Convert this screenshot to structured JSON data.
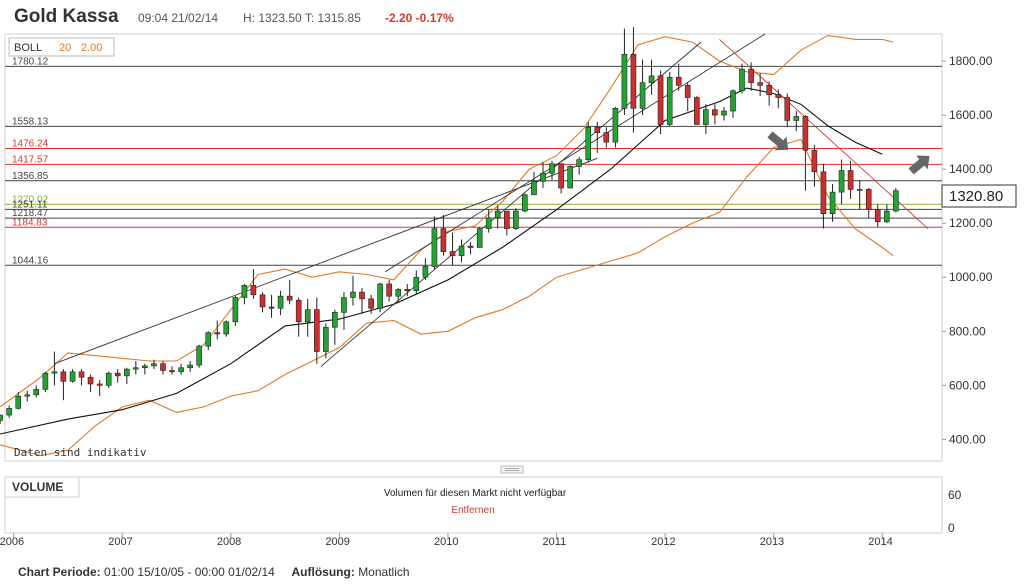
{
  "header": {
    "title": "Gold Kassa",
    "time": "09:04 21/02/14",
    "high_low": "H: 1323.50  T: 1315.85",
    "change": "-2.20  -0.17%"
  },
  "indicator": {
    "name": "BOLL",
    "period": "20",
    "stddev": "2.00"
  },
  "current_price_label": "1320.80",
  "disclaimer": "Daten sind indikativ",
  "volume": {
    "title": "VOLUME",
    "message": "Volumen für diesen Markt nicht verfügbar",
    "remove_label": "Entfernen",
    "tick_labels": [
      "60",
      "0"
    ]
  },
  "footer": {
    "period_label": "Chart Periode:",
    "period_value": "01:00 15/10/05 - 00:00 01/02/14",
    "resolution_label": "Auflösung:",
    "resolution_value": "Monatlich"
  },
  "colors": {
    "up": "#23a334",
    "down": "#cc2f2f",
    "band": "#e07a26",
    "level_red": "#d23a2b",
    "level_green": "#8db02c",
    "level_dark": "#444444",
    "trend_red": "#d23a2b"
  },
  "icons": [
    "arrow-down-right-icon",
    "arrow-up-right-icon",
    "drag-handle-icon"
  ],
  "chart_data": {
    "type": "candlestick",
    "title": "Gold Kassa",
    "resolution": "monthly",
    "ylim": [
      320,
      1900
    ],
    "y_ticks": [
      400,
      600,
      800,
      1000,
      1200,
      1400,
      1600,
      1800
    ],
    "y_tick_labels": [
      "400.00",
      "600.00",
      "800.00",
      "1000.00",
      "1200.00",
      "1400.00",
      "1600.00",
      "1800.00"
    ],
    "x_ticks": [
      {
        "label": "2006",
        "t": 2006.0
      },
      {
        "label": "2007",
        "t": 2007.0
      },
      {
        "label": "2008",
        "t": 2008.0
      },
      {
        "label": "2009",
        "t": 2009.0
      },
      {
        "label": "2010",
        "t": 2010.0
      },
      {
        "label": "2011",
        "t": 2011.0
      },
      {
        "label": "2012",
        "t": 2012.0
      },
      {
        "label": "2013",
        "t": 2013.0
      },
      {
        "label": "2014",
        "t": 2014.0
      }
    ],
    "xlim": [
      2005.92,
      2014.55
    ],
    "levels": [
      {
        "value": 1780.12,
        "label": "1780.12",
        "color": "#444444",
        "text_color": "#444444"
      },
      {
        "value": 1558.13,
        "label": "1558.13",
        "color": "#444444",
        "text_color": "#444444"
      },
      {
        "value": 1476.24,
        "label": "1476.24",
        "color": "#d23a2b",
        "text_color": "#d23a2b"
      },
      {
        "value": 1417.57,
        "label": "1417.57",
        "color": "#d23a2b",
        "text_color": "#d23a2b"
      },
      {
        "value": 1356.85,
        "label": "1356.85",
        "color": "#444444",
        "text_color": "#444444"
      },
      {
        "value": 1270.02,
        "label": "1270.02",
        "color": "#8db02c",
        "text_color": "#8db02c"
      },
      {
        "value": 1251.11,
        "label": "1251.11",
        "color": "#444444",
        "text_color": "#444444"
      },
      {
        "value": 1218.47,
        "label": "1218.47",
        "color": "#444444",
        "text_color": "#444444"
      },
      {
        "value": 1184.83,
        "label": "1184.83",
        "color": "#d23a2b",
        "text_color": "#d23a2b"
      },
      {
        "value": 1044.16,
        "label": "1044.16",
        "color": "#444444",
        "text_color": "#444444"
      }
    ],
    "current_price": 1320.8,
    "candles": [
      {
        "t": 2005.875,
        "o": 470,
        "h": 492,
        "l": 457,
        "c": 490
      },
      {
        "t": 2005.958,
        "o": 490,
        "h": 525,
        "l": 480,
        "c": 515
      },
      {
        "t": 2006.042,
        "o": 515,
        "h": 575,
        "l": 510,
        "c": 560
      },
      {
        "t": 2006.125,
        "o": 560,
        "h": 580,
        "l": 540,
        "c": 565
      },
      {
        "t": 2006.208,
        "o": 565,
        "h": 600,
        "l": 555,
        "c": 585
      },
      {
        "t": 2006.292,
        "o": 585,
        "h": 650,
        "l": 575,
        "c": 645
      },
      {
        "t": 2006.375,
        "o": 645,
        "h": 725,
        "l": 600,
        "c": 650
      },
      {
        "t": 2006.458,
        "o": 650,
        "h": 660,
        "l": 545,
        "c": 615
      },
      {
        "t": 2006.542,
        "o": 615,
        "h": 660,
        "l": 610,
        "c": 650
      },
      {
        "t": 2006.625,
        "o": 650,
        "h": 660,
        "l": 600,
        "c": 630
      },
      {
        "t": 2006.708,
        "o": 630,
        "h": 640,
        "l": 575,
        "c": 605
      },
      {
        "t": 2006.792,
        "o": 605,
        "h": 620,
        "l": 560,
        "c": 600
      },
      {
        "t": 2006.875,
        "o": 600,
        "h": 650,
        "l": 590,
        "c": 645
      },
      {
        "t": 2006.958,
        "o": 645,
        "h": 660,
        "l": 610,
        "c": 635
      },
      {
        "t": 2007.042,
        "o": 635,
        "h": 665,
        "l": 605,
        "c": 660
      },
      {
        "t": 2007.125,
        "o": 660,
        "h": 690,
        "l": 640,
        "c": 665
      },
      {
        "t": 2007.208,
        "o": 665,
        "h": 680,
        "l": 640,
        "c": 672
      },
      {
        "t": 2007.292,
        "o": 672,
        "h": 695,
        "l": 660,
        "c": 680
      },
      {
        "t": 2007.375,
        "o": 680,
        "h": 690,
        "l": 640,
        "c": 655
      },
      {
        "t": 2007.458,
        "o": 655,
        "h": 670,
        "l": 640,
        "c": 650
      },
      {
        "t": 2007.542,
        "o": 650,
        "h": 680,
        "l": 640,
        "c": 665
      },
      {
        "t": 2007.625,
        "o": 665,
        "h": 690,
        "l": 650,
        "c": 675
      },
      {
        "t": 2007.708,
        "o": 675,
        "h": 750,
        "l": 665,
        "c": 745
      },
      {
        "t": 2007.792,
        "o": 745,
        "h": 800,
        "l": 730,
        "c": 795
      },
      {
        "t": 2007.875,
        "o": 795,
        "h": 840,
        "l": 770,
        "c": 790
      },
      {
        "t": 2007.958,
        "o": 790,
        "h": 840,
        "l": 780,
        "c": 835
      },
      {
        "t": 2008.042,
        "o": 835,
        "h": 930,
        "l": 820,
        "c": 925
      },
      {
        "t": 2008.125,
        "o": 925,
        "h": 975,
        "l": 900,
        "c": 970
      },
      {
        "t": 2008.208,
        "o": 970,
        "h": 1030,
        "l": 920,
        "c": 935
      },
      {
        "t": 2008.292,
        "o": 935,
        "h": 945,
        "l": 870,
        "c": 890
      },
      {
        "t": 2008.375,
        "o": 890,
        "h": 935,
        "l": 850,
        "c": 885
      },
      {
        "t": 2008.458,
        "o": 885,
        "h": 950,
        "l": 860,
        "c": 930
      },
      {
        "t": 2008.542,
        "o": 930,
        "h": 990,
        "l": 900,
        "c": 915
      },
      {
        "t": 2008.625,
        "o": 915,
        "h": 925,
        "l": 780,
        "c": 835
      },
      {
        "t": 2008.708,
        "o": 835,
        "h": 920,
        "l": 780,
        "c": 880
      },
      {
        "t": 2008.792,
        "o": 880,
        "h": 925,
        "l": 680,
        "c": 725
      },
      {
        "t": 2008.875,
        "o": 725,
        "h": 830,
        "l": 700,
        "c": 815
      },
      {
        "t": 2008.958,
        "o": 815,
        "h": 880,
        "l": 750,
        "c": 870
      },
      {
        "t": 2009.042,
        "o": 870,
        "h": 945,
        "l": 805,
        "c": 925
      },
      {
        "t": 2009.125,
        "o": 925,
        "h": 1005,
        "l": 895,
        "c": 945
      },
      {
        "t": 2009.208,
        "o": 945,
        "h": 960,
        "l": 865,
        "c": 920
      },
      {
        "t": 2009.292,
        "o": 920,
        "h": 935,
        "l": 865,
        "c": 885
      },
      {
        "t": 2009.375,
        "o": 885,
        "h": 980,
        "l": 870,
        "c": 975
      },
      {
        "t": 2009.458,
        "o": 975,
        "h": 990,
        "l": 910,
        "c": 930
      },
      {
        "t": 2009.542,
        "o": 930,
        "h": 960,
        "l": 905,
        "c": 955
      },
      {
        "t": 2009.625,
        "o": 955,
        "h": 975,
        "l": 930,
        "c": 950
      },
      {
        "t": 2009.708,
        "o": 950,
        "h": 1025,
        "l": 935,
        "c": 1000
      },
      {
        "t": 2009.792,
        "o": 1000,
        "h": 1070,
        "l": 990,
        "c": 1040
      },
      {
        "t": 2009.875,
        "o": 1040,
        "h": 1225,
        "l": 1030,
        "c": 1180
      },
      {
        "t": 2009.958,
        "o": 1180,
        "h": 1230,
        "l": 1080,
        "c": 1095
      },
      {
        "t": 2010.042,
        "o": 1095,
        "h": 1165,
        "l": 1045,
        "c": 1080
      },
      {
        "t": 2010.125,
        "o": 1080,
        "h": 1140,
        "l": 1055,
        "c": 1115
      },
      {
        "t": 2010.208,
        "o": 1115,
        "h": 1130,
        "l": 1085,
        "c": 1110
      },
      {
        "t": 2010.292,
        "o": 1110,
        "h": 1185,
        "l": 1110,
        "c": 1180
      },
      {
        "t": 2010.375,
        "o": 1180,
        "h": 1250,
        "l": 1165,
        "c": 1220
      },
      {
        "t": 2010.458,
        "o": 1220,
        "h": 1265,
        "l": 1180,
        "c": 1245
      },
      {
        "t": 2010.542,
        "o": 1245,
        "h": 1245,
        "l": 1155,
        "c": 1180
      },
      {
        "t": 2010.625,
        "o": 1180,
        "h": 1255,
        "l": 1175,
        "c": 1245
      },
      {
        "t": 2010.708,
        "o": 1245,
        "h": 1310,
        "l": 1240,
        "c": 1305
      },
      {
        "t": 2010.792,
        "o": 1305,
        "h": 1390,
        "l": 1305,
        "c": 1355
      },
      {
        "t": 2010.875,
        "o": 1355,
        "h": 1425,
        "l": 1330,
        "c": 1385
      },
      {
        "t": 2010.958,
        "o": 1385,
        "h": 1430,
        "l": 1360,
        "c": 1420
      },
      {
        "t": 2011.042,
        "o": 1420,
        "h": 1420,
        "l": 1310,
        "c": 1330
      },
      {
        "t": 2011.125,
        "o": 1330,
        "h": 1415,
        "l": 1330,
        "c": 1410
      },
      {
        "t": 2011.208,
        "o": 1410,
        "h": 1445,
        "l": 1380,
        "c": 1435
      },
      {
        "t": 2011.292,
        "o": 1435,
        "h": 1575,
        "l": 1425,
        "c": 1555
      },
      {
        "t": 2011.375,
        "o": 1555,
        "h": 1575,
        "l": 1460,
        "c": 1535
      },
      {
        "t": 2011.458,
        "o": 1535,
        "h": 1555,
        "l": 1480,
        "c": 1500
      },
      {
        "t": 2011.542,
        "o": 1500,
        "h": 1630,
        "l": 1480,
        "c": 1625
      },
      {
        "t": 2011.625,
        "o": 1625,
        "h": 1920,
        "l": 1600,
        "c": 1825
      },
      {
        "t": 2011.708,
        "o": 1825,
        "h": 1925,
        "l": 1535,
        "c": 1625
      },
      {
        "t": 2011.792,
        "o": 1625,
        "h": 1805,
        "l": 1600,
        "c": 1720
      },
      {
        "t": 2011.875,
        "o": 1720,
        "h": 1805,
        "l": 1675,
        "c": 1745
      },
      {
        "t": 2011.958,
        "o": 1745,
        "h": 1765,
        "l": 1530,
        "c": 1565
      },
      {
        "t": 2012.042,
        "o": 1565,
        "h": 1760,
        "l": 1560,
        "c": 1740
      },
      {
        "t": 2012.125,
        "o": 1740,
        "h": 1790,
        "l": 1690,
        "c": 1710
      },
      {
        "t": 2012.208,
        "o": 1710,
        "h": 1720,
        "l": 1615,
        "c": 1665
      },
      {
        "t": 2012.292,
        "o": 1665,
        "h": 1670,
        "l": 1565,
        "c": 1565
      },
      {
        "t": 2012.375,
        "o": 1565,
        "h": 1640,
        "l": 1530,
        "c": 1620
      },
      {
        "t": 2012.458,
        "o": 1620,
        "h": 1640,
        "l": 1565,
        "c": 1600
      },
      {
        "t": 2012.542,
        "o": 1600,
        "h": 1630,
        "l": 1580,
        "c": 1615
      },
      {
        "t": 2012.625,
        "o": 1615,
        "h": 1695,
        "l": 1590,
        "c": 1690
      },
      {
        "t": 2012.708,
        "o": 1690,
        "h": 1790,
        "l": 1680,
        "c": 1770
      },
      {
        "t": 2012.792,
        "o": 1770,
        "h": 1795,
        "l": 1690,
        "c": 1720
      },
      {
        "t": 2012.875,
        "o": 1720,
        "h": 1755,
        "l": 1670,
        "c": 1710
      },
      {
        "t": 2012.958,
        "o": 1710,
        "h": 1725,
        "l": 1635,
        "c": 1675
      },
      {
        "t": 2013.042,
        "o": 1675,
        "h": 1695,
        "l": 1625,
        "c": 1665
      },
      {
        "t": 2013.125,
        "o": 1665,
        "h": 1680,
        "l": 1555,
        "c": 1580
      },
      {
        "t": 2013.208,
        "o": 1580,
        "h": 1615,
        "l": 1540,
        "c": 1595
      },
      {
        "t": 2013.292,
        "o": 1595,
        "h": 1600,
        "l": 1320,
        "c": 1470
      },
      {
        "t": 2013.375,
        "o": 1470,
        "h": 1490,
        "l": 1335,
        "c": 1390
      },
      {
        "t": 2013.458,
        "o": 1390,
        "h": 1420,
        "l": 1180,
        "c": 1235
      },
      {
        "t": 2013.542,
        "o": 1235,
        "h": 1345,
        "l": 1205,
        "c": 1315
      },
      {
        "t": 2013.625,
        "o": 1315,
        "h": 1435,
        "l": 1270,
        "c": 1395
      },
      {
        "t": 2013.708,
        "o": 1395,
        "h": 1430,
        "l": 1290,
        "c": 1325
      },
      {
        "t": 2013.792,
        "o": 1325,
        "h": 1360,
        "l": 1250,
        "c": 1325
      },
      {
        "t": 2013.875,
        "o": 1325,
        "h": 1330,
        "l": 1220,
        "c": 1250
      },
      {
        "t": 2013.958,
        "o": 1250,
        "h": 1270,
        "l": 1185,
        "c": 1205
      },
      {
        "t": 2014.042,
        "o": 1205,
        "h": 1270,
        "l": 1200,
        "c": 1245
      },
      {
        "t": 2014.125,
        "o": 1245,
        "h": 1330,
        "l": 1240,
        "c": 1320
      }
    ],
    "middle_band": [
      [
        2005.875,
        420
      ],
      [
        2006.5,
        475
      ],
      [
        2007.0,
        510
      ],
      [
        2007.5,
        570
      ],
      [
        2008.0,
        680
      ],
      [
        2008.5,
        820
      ],
      [
        2009.0,
        845
      ],
      [
        2009.5,
        900
      ],
      [
        2010.0,
        990
      ],
      [
        2010.5,
        1110
      ],
      [
        2011.0,
        1250
      ],
      [
        2011.5,
        1400
      ],
      [
        2012.0,
        1580
      ],
      [
        2012.5,
        1650
      ],
      [
        2012.75,
        1700
      ],
      [
        2013.0,
        1680
      ],
      [
        2013.25,
        1640
      ],
      [
        2013.5,
        1560
      ],
      [
        2013.75,
        1500
      ],
      [
        2014.0,
        1455
      ]
    ],
    "upper_band": [
      [
        2005.875,
        520
      ],
      [
        2006.25,
        630
      ],
      [
        2006.5,
        720
      ],
      [
        2006.75,
        710
      ],
      [
        2007.0,
        700
      ],
      [
        2007.25,
        690
      ],
      [
        2007.5,
        690
      ],
      [
        2007.75,
        750
      ],
      [
        2008.0,
        880
      ],
      [
        2008.25,
        1010
      ],
      [
        2008.5,
        1030
      ],
      [
        2008.75,
        1000
      ],
      [
        2009.0,
        1020
      ],
      [
        2009.25,
        1010
      ],
      [
        2009.5,
        990
      ],
      [
        2009.75,
        1100
      ],
      [
        2010.0,
        1170
      ],
      [
        2010.25,
        1190
      ],
      [
        2010.5,
        1280
      ],
      [
        2010.75,
        1400
      ],
      [
        2011.0,
        1450
      ],
      [
        2011.25,
        1550
      ],
      [
        2011.5,
        1700
      ],
      [
        2011.75,
        1860
      ],
      [
        2012.0,
        1890
      ],
      [
        2012.25,
        1870
      ],
      [
        2012.5,
        1800
      ],
      [
        2012.75,
        1760
      ],
      [
        2013.0,
        1750
      ],
      [
        2013.25,
        1840
      ],
      [
        2013.5,
        1895
      ],
      [
        2013.75,
        1880
      ],
      [
        2014.0,
        1880
      ],
      [
        2014.1,
        1870
      ]
    ],
    "lower_band": [
      [
        2005.875,
        380
      ],
      [
        2006.25,
        340
      ],
      [
        2006.5,
        360
      ],
      [
        2006.75,
        450
      ],
      [
        2007.0,
        520
      ],
      [
        2007.25,
        545
      ],
      [
        2007.5,
        500
      ],
      [
        2007.75,
        520
      ],
      [
        2008.0,
        560
      ],
      [
        2008.25,
        580
      ],
      [
        2008.5,
        640
      ],
      [
        2008.75,
        690
      ],
      [
        2009.0,
        740
      ],
      [
        2009.25,
        830
      ],
      [
        2009.5,
        840
      ],
      [
        2009.75,
        790
      ],
      [
        2010.0,
        800
      ],
      [
        2010.25,
        850
      ],
      [
        2010.5,
        880
      ],
      [
        2010.75,
        930
      ],
      [
        2011.0,
        1000
      ],
      [
        2011.25,
        1030
      ],
      [
        2011.5,
        1060
      ],
      [
        2011.75,
        1090
      ],
      [
        2012.0,
        1150
      ],
      [
        2012.25,
        1200
      ],
      [
        2012.5,
        1240
      ],
      [
        2012.75,
        1370
      ],
      [
        2013.0,
        1480
      ],
      [
        2013.25,
        1510
      ],
      [
        2013.5,
        1300
      ],
      [
        2013.75,
        1180
      ],
      [
        2014.0,
        1110
      ],
      [
        2014.1,
        1080
      ]
    ],
    "trend_lines": [
      {
        "from": [
          2006.375,
          680
        ],
        "to": [
          2011.375,
          1440
        ],
        "color": "#333333"
      },
      {
        "from": [
          2009.42,
          1020
        ],
        "to": [
          2012.92,
          1900
        ],
        "color": "#333333"
      },
      {
        "from": [
          2008.83,
          670
        ],
        "to": [
          2012.33,
          1870
        ],
        "color": "#333333"
      },
      {
        "from": [
          2012.5,
          1880
        ],
        "to": [
          2014.42,
          1180
        ],
        "color": "#d23a2b"
      }
    ],
    "annotations": [
      {
        "type": "arrow",
        "direction": "down-right",
        "t": 2013.05,
        "v": 1500
      },
      {
        "type": "arrow",
        "direction": "up-right",
        "t": 2014.35,
        "v": 1420
      }
    ]
  }
}
